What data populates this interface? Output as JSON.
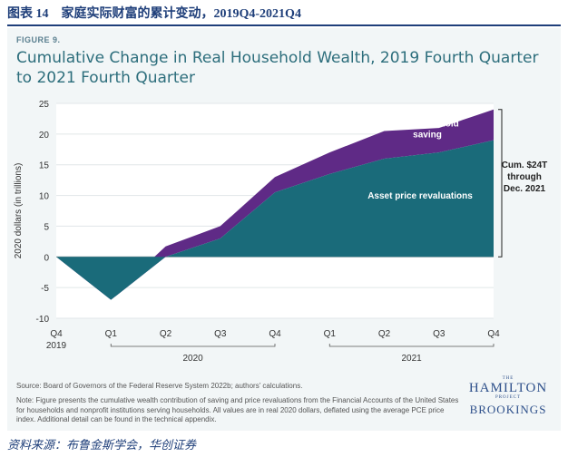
{
  "caption": "图表 14　家庭实际财富的累计变动，2019Q4-2021Q4",
  "figure_label": "FIGURE 9.",
  "footer": "资料来源：布鲁金斯学会，华创证券",
  "source": "Source: Board of Governors of the Federal Reserve System 2022b; authors’ calculations.",
  "note": "Note: Figure presents the cumulative wealth contribution of saving and price revaluations from the Financial Accounts of the United States for households and nonprofit institutions serving households. All values are in real 2020 dollars, deflated using the average PCE price index. Additional detail can be found in the technical appendix.",
  "logo": {
    "the": "THE",
    "hamilton": "HAMILTON",
    "project": "PROJECT",
    "brookings": "BROOKINGS"
  },
  "colors": {
    "asset": "#1a6b7a",
    "saving": "#5f2a86",
    "title": "#2d6e7c",
    "panel": "#f2f6f7"
  },
  "chart_data": {
    "type": "area",
    "title": "Cumulative Change in Real Household Wealth, 2019 Fourth Quarter to 2021 Fourth Quarter",
    "ylabel": "2020 dollars (in trillions)",
    "xlabel": "",
    "ylim": [
      -10,
      25
    ],
    "yticks": [
      -10,
      -5,
      0,
      5,
      10,
      15,
      20,
      25
    ],
    "categories": [
      "Q4",
      "Q1",
      "Q2",
      "Q3",
      "Q4",
      "Q1",
      "Q2",
      "Q3",
      "Q4"
    ],
    "year_groups": [
      {
        "label": "2019",
        "start": 0,
        "end": 0
      },
      {
        "label": "2020",
        "start": 1,
        "end": 4
      },
      {
        "label": "2021",
        "start": 5,
        "end": 8
      }
    ],
    "series": [
      {
        "name": "Asset price revaluations",
        "values": [
          0,
          -7,
          0,
          3,
          10.5,
          13.5,
          16,
          17,
          19
        ]
      },
      {
        "name": "Net household saving",
        "values": [
          0,
          0.4,
          1.7,
          2,
          2.5,
          3.5,
          4.5,
          4,
          5
        ]
      }
    ],
    "annotations": {
      "saving_label": [
        "Net household",
        "saving"
      ],
      "asset_label": "Asset price revaluations",
      "total_label": [
        "Cum. $24T",
        "through",
        "Dec. 2021"
      ]
    }
  }
}
